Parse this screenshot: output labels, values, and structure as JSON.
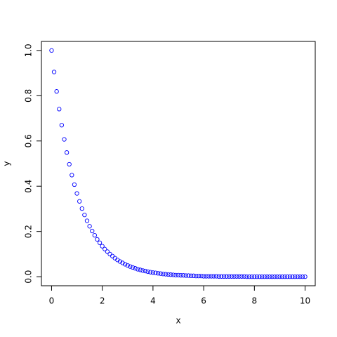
{
  "chart_data": {
    "type": "scatter",
    "xlabel": "x",
    "ylabel": "y",
    "color": "#0000ff",
    "x": [
      0,
      0.1,
      0.2,
      0.3,
      0.4,
      0.5,
      0.6,
      0.7,
      0.8,
      0.9,
      1,
      1.1,
      1.2,
      1.3,
      1.4,
      1.5,
      1.6,
      1.7,
      1.8,
      1.9,
      2,
      2.1,
      2.2,
      2.3,
      2.4,
      2.5,
      2.6,
      2.7,
      2.8,
      2.9,
      3,
      3.1,
      3.2,
      3.3,
      3.4,
      3.5,
      3.6,
      3.7,
      3.8,
      3.9,
      4,
      4.1,
      4.2,
      4.3,
      4.4,
      4.5,
      4.6,
      4.7,
      4.8,
      4.9,
      5,
      5.1,
      5.2,
      5.3,
      5.4,
      5.5,
      5.6,
      5.7,
      5.8,
      5.9,
      6,
      6.1,
      6.2,
      6.3,
      6.4,
      6.5,
      6.6,
      6.7,
      6.8,
      6.9,
      7,
      7.1,
      7.2,
      7.3,
      7.4,
      7.5,
      7.6,
      7.7,
      7.8,
      7.9,
      8,
      8.1,
      8.2,
      8.3,
      8.4,
      8.5,
      8.6,
      8.7,
      8.8,
      8.9,
      9,
      9.1,
      9.2,
      9.3,
      9.4,
      9.5,
      9.6,
      9.7,
      9.8,
      9.9,
      10
    ],
    "values": [
      1.0,
      0.905,
      0.819,
      0.741,
      0.67,
      0.607,
      0.549,
      0.497,
      0.449,
      0.407,
      0.368,
      0.333,
      0.301,
      0.273,
      0.247,
      0.223,
      0.202,
      0.183,
      0.165,
      0.15,
      0.135,
      0.122,
      0.111,
      0.1,
      0.091,
      0.082,
      0.074,
      0.067,
      0.061,
      0.055,
      0.05,
      0.045,
      0.041,
      0.037,
      0.033,
      0.03,
      0.027,
      0.025,
      0.022,
      0.02,
      0.018,
      0.017,
      0.015,
      0.014,
      0.012,
      0.011,
      0.01,
      0.009,
      0.008,
      0.007,
      0.007,
      0.006,
      0.006,
      0.005,
      0.005,
      0.004,
      0.004,
      0.003,
      0.003,
      0.003,
      0.002,
      0.002,
      0.002,
      0.002,
      0.002,
      0.002,
      0.001,
      0.001,
      0.001,
      0.001,
      0.001,
      0.001,
      0.001,
      0.001,
      0.001,
      0.001,
      0.001,
      0.0,
      0.0,
      0.0,
      0.0,
      0.0,
      0.0,
      0.0,
      0.0,
      0.0,
      0.0,
      0.0,
      0.0,
      0.0,
      0.0,
      0.0,
      0.0,
      0.0,
      0.0,
      0.0,
      0.0,
      0.0,
      0.0,
      0.0,
      0.0
    ],
    "xlim": [
      -0.4,
      10.4
    ],
    "ylim": [
      -0.04,
      1.04
    ],
    "xticks": [
      0,
      2,
      4,
      6,
      8,
      10
    ],
    "yticks": [
      {
        "value": 0,
        "label": "0.0"
      },
      0.2,
      0.4,
      0.6,
      0.8,
      {
        "value": 1,
        "label": "1.0"
      }
    ]
  }
}
